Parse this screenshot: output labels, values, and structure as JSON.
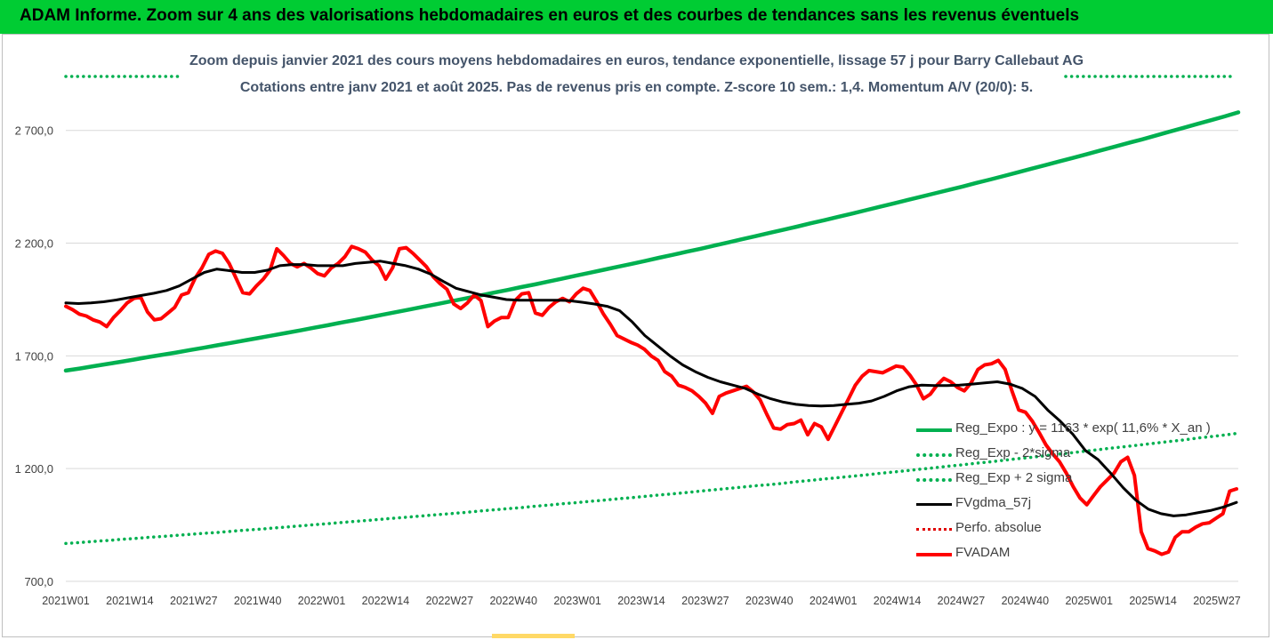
{
  "banner": {
    "title": "ADAM Informe. Zoom sur 4 ans des valorisations hebdomadaires en euros et des courbes de tendances sans les revenus éventuels"
  },
  "chart_data": {
    "type": "line",
    "title": "Zoom depuis janvier 2021 des cours moyens hebdomadaires en euros, tendance exponentielle, lissage 57 j pour Barry Callebaut AG",
    "subtitle": "Cotations entre janv 2021 et août 2025.  Pas de revenus pris en compte. Z-score 10 sem.: 1,4. Momentum A/V (20/0): 5.",
    "ylim": [
      700,
      2900
    ],
    "y_ticks": [
      "700,0",
      "1 200,0",
      "1 700,0",
      "2 200,0",
      "2 700,0"
    ],
    "y_tick_values": [
      700,
      1200,
      1700,
      2200,
      2700
    ],
    "x_ticks": [
      "2021W01",
      "2021W14",
      "2021W27",
      "2021W40",
      "2022W01",
      "2022W14",
      "2022W27",
      "2022W40",
      "2023W01",
      "2023W14",
      "2023W27",
      "2023W40",
      "2024W01",
      "2024W14",
      "2024W27",
      "2024W40",
      "2025W01",
      "2025W14",
      "2025W27"
    ],
    "grid": "horizontal",
    "legend_position": "right",
    "colors": {
      "reg_expo": "#00b050",
      "fvgdma": "#000000",
      "perfo": "#e00000",
      "fvadam": "#ff0000"
    },
    "series": [
      {
        "name": "Reg_Expo : y = 1163 * exp( 11,6% * X_an )",
        "style": "solid-green",
        "y": [
          1635,
          1644,
          1654,
          1664,
          1674,
          1684,
          1695,
          1705,
          1715,
          1726,
          1736,
          1747,
          1758,
          1769,
          1780,
          1791,
          1802,
          1813,
          1825,
          1836,
          1848,
          1859,
          1871,
          1883,
          1895,
          1907,
          1919,
          1931,
          1943,
          1955,
          1967,
          1980,
          1992,
          2005,
          2017,
          2030,
          2043,
          2056,
          2069,
          2082,
          2095,
          2108,
          2121,
          2135,
          2148,
          2162,
          2175,
          2189,
          2203,
          2217,
          2231,
          2245,
          2259,
          2273,
          2288,
          2302,
          2317,
          2331,
          2346,
          2361,
          2376,
          2391,
          2406,
          2421,
          2436,
          2451,
          2467,
          2482,
          2498,
          2514,
          2530,
          2546,
          2562,
          2578,
          2594,
          2611,
          2627,
          2644,
          2660,
          2677,
          2694,
          2711,
          2728,
          2745,
          2762,
          2780
        ]
      },
      {
        "name": "Reg_Exp - 2*sigma",
        "style": "dotted-green",
        "y": [
          868,
          872,
          877,
          881,
          886,
          890,
          895,
          899,
          904,
          908,
          913,
          917,
          922,
          927,
          931,
          936,
          941,
          946,
          951,
          956,
          961,
          966,
          971,
          976,
          981,
          986,
          991,
          996,
          1001,
          1006,
          1012,
          1017,
          1022,
          1027,
          1033,
          1038,
          1044,
          1049,
          1055,
          1060,
          1066,
          1071,
          1077,
          1083,
          1088,
          1094,
          1100,
          1106,
          1112,
          1118,
          1124,
          1129,
          1135,
          1142,
          1148,
          1154,
          1160,
          1166,
          1172,
          1179,
          1185,
          1191,
          1198,
          1204,
          1211,
          1217,
          1224,
          1230,
          1237,
          1244,
          1250,
          1257,
          1264,
          1271,
          1278,
          1285,
          1292,
          1299,
          1306,
          1313,
          1320,
          1327,
          1335,
          1342,
          1349,
          1357
        ]
      },
      {
        "name": "Reg_Exp + 2 sigma",
        "style": "dotted-green"
      },
      {
        "name": "FVgdma_57j",
        "style": "solid-black",
        "y": [
          1935,
          1932,
          1935,
          1940,
          1948,
          1958,
          1968,
          1978,
          1990,
          2010,
          2040,
          2070,
          2085,
          2078,
          2070,
          2070,
          2080,
          2100,
          2105,
          2105,
          2100,
          2100,
          2100,
          2110,
          2115,
          2120,
          2110,
          2100,
          2085,
          2062,
          2030,
          2000,
          1985,
          1970,
          1960,
          1950,
          1947,
          1947,
          1947,
          1947,
          1945,
          1938,
          1930,
          1920,
          1900,
          1850,
          1790,
          1745,
          1700,
          1660,
          1630,
          1605,
          1585,
          1570,
          1555,
          1530,
          1510,
          1495,
          1485,
          1480,
          1478,
          1480,
          1485,
          1490,
          1500,
          1520,
          1545,
          1563,
          1570,
          1568,
          1568,
          1570,
          1575,
          1580,
          1585,
          1575,
          1555,
          1520,
          1460,
          1410,
          1352,
          1280,
          1240,
          1180,
          1115,
          1060,
          1020,
          1000,
          990,
          995,
          1005,
          1015,
          1030,
          1050
        ]
      },
      {
        "name": "Perfo. absolue",
        "style": "dotted-red"
      },
      {
        "name": "FVADAM",
        "style": "solid-red",
        "y": [
          1920,
          1905,
          1885,
          1877,
          1860,
          1850,
          1830,
          1870,
          1900,
          1935,
          1955,
          1960,
          1895,
          1860,
          1865,
          1890,
          1915,
          1970,
          1980,
          2045,
          2090,
          2150,
          2165,
          2155,
          2110,
          2045,
          1980,
          1975,
          2010,
          2040,
          2080,
          2175,
          2145,
          2110,
          2095,
          2110,
          2090,
          2065,
          2055,
          2090,
          2110,
          2140,
          2185,
          2175,
          2160,
          2125,
          2100,
          2040,
          2090,
          2175,
          2180,
          2155,
          2125,
          2095,
          2050,
          2020,
          1995,
          1930,
          1910,
          1935,
          1970,
          1945,
          1830,
          1855,
          1870,
          1870,
          1945,
          1975,
          1980,
          1890,
          1880,
          1915,
          1940,
          1955,
          1940,
          1975,
          2000,
          1990,
          1940,
          1885,
          1840,
          1790,
          1775,
          1760,
          1748,
          1730,
          1700,
          1680,
          1630,
          1610,
          1570,
          1560,
          1545,
          1520,
          1490,
          1445,
          1520,
          1535,
          1545,
          1555,
          1565,
          1540,
          1505,
          1440,
          1380,
          1375,
          1395,
          1400,
          1415,
          1350,
          1400,
          1385,
          1330,
          1390,
          1450,
          1510,
          1570,
          1610,
          1635,
          1630,
          1625,
          1640,
          1655,
          1650,
          1615,
          1570,
          1510,
          1530,
          1570,
          1600,
          1585,
          1560,
          1545,
          1580,
          1640,
          1660,
          1665,
          1680,
          1640,
          1545,
          1460,
          1450,
          1410,
          1360,
          1305,
          1265,
          1230,
          1180,
          1120,
          1070,
          1040,
          1080,
          1120,
          1150,
          1180,
          1230,
          1250,
          1170,
          920,
          845,
          835,
          820,
          830,
          895,
          920,
          920,
          940,
          955,
          960,
          980,
          1000,
          1100,
          1110
        ]
      }
    ]
  }
}
